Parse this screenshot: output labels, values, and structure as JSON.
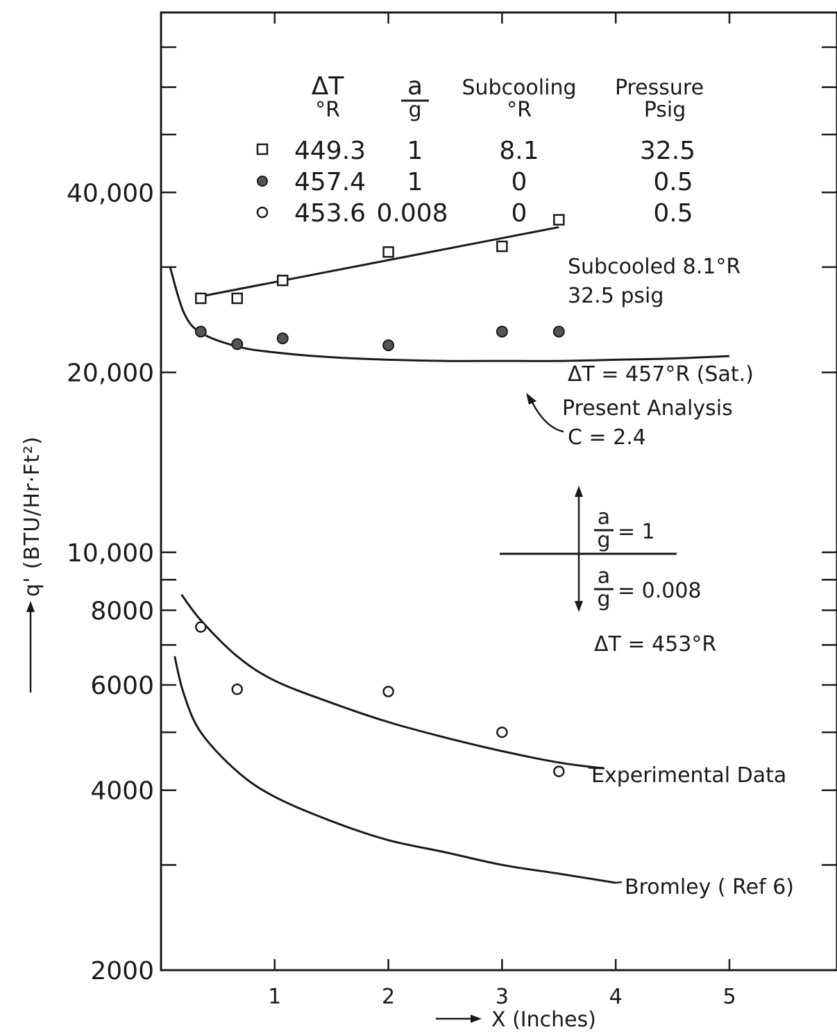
{
  "chart_data": {
    "type": "scatter",
    "title": "",
    "xlabel": "X (Inches)",
    "ylabel": "q' (BTU/Hr·Ft²)",
    "x_scale": "linear",
    "y_scale": "log",
    "xlim": [
      0,
      6
    ],
    "ylim": [
      2000,
      80000
    ],
    "x_ticks": [
      1,
      2,
      3,
      4,
      5
    ],
    "x_tick_labels": [
      "1",
      "2",
      "3",
      "4",
      "5"
    ],
    "y_labeled_ticks": [
      2000,
      4000,
      6000,
      8000,
      10000,
      20000,
      40000
    ],
    "y_tick_labels": [
      "2000",
      "4000",
      "6000",
      "8000",
      "10,000",
      "20,000",
      "40,000"
    ],
    "y_minor_ticks": [
      3000,
      5000,
      7000,
      9000,
      30000,
      50000,
      60000,
      70000
    ],
    "grid": false,
    "legend": {
      "position": "top",
      "headers": [
        {
          "line1": "ΔT",
          "line2": "°R"
        },
        {
          "line1": "a",
          "line2": "g"
        },
        {
          "line1": "Subcooling",
          "line2": "°R"
        },
        {
          "line1": "Pressure",
          "line2": "Psig"
        }
      ],
      "rows": [
        {
          "marker": "open-square",
          "dT": "449.3",
          "ag": "1",
          "subcooling": "8.1",
          "pressure": "32.5"
        },
        {
          "marker": "filled-circle",
          "dT": "457.4",
          "ag": "1",
          "subcooling": "0",
          "pressure": "0.5"
        },
        {
          "marker": "open-circle",
          "dT": "453.6",
          "ag": "0.008",
          "subcooling": "0",
          "pressure": "0.5"
        }
      ]
    },
    "series": [
      {
        "marker": "open-square",
        "x": [
          0.35,
          0.67,
          1.07,
          2.0,
          3.0,
          3.5
        ],
        "y": [
          26600,
          26600,
          28500,
          31800,
          32500,
          36000
        ]
      },
      {
        "marker": "filled-circle",
        "x": [
          0.35,
          0.67,
          1.07,
          2.0,
          3.0,
          3.5
        ],
        "y": [
          23400,
          22300,
          22800,
          22200,
          23400,
          23400
        ]
      },
      {
        "marker": "open-circle",
        "x": [
          0.35,
          0.67,
          2.0,
          3.0,
          3.5
        ],
        "y": [
          7500,
          5900,
          5850,
          5000,
          4300
        ]
      }
    ],
    "curves": [
      {
        "type": "subcooled-fit",
        "x": [
          0.35,
          3.5
        ],
        "y": [
          26800,
          35000
        ]
      },
      {
        "type": "present-analysis",
        "x": [
          0.08,
          0.2,
          0.35,
          0.67,
          1.0,
          1.5,
          2.0,
          2.5,
          3.0,
          3.5,
          4.0,
          4.5,
          5.0
        ],
        "y": [
          30000,
          25200,
          23300,
          22100,
          21600,
          21200,
          21000,
          20900,
          20900,
          20900,
          21000,
          21100,
          21300
        ]
      },
      {
        "type": "experimental-data",
        "x": [
          0.18,
          0.35,
          0.67,
          1.0,
          1.5,
          2.0,
          2.5,
          3.0,
          3.5,
          3.9
        ],
        "y": [
          8500,
          7700,
          6700,
          6100,
          5600,
          5200,
          4900,
          4650,
          4450,
          4350
        ]
      },
      {
        "type": "bromley",
        "x": [
          0.12,
          0.2,
          0.35,
          0.67,
          1.0,
          1.5,
          2.0,
          2.5,
          3.0,
          3.5,
          4.0
        ],
        "y": [
          6700,
          5800,
          5000,
          4300,
          3900,
          3550,
          3300,
          3150,
          3000,
          2900,
          2800
        ]
      }
    ],
    "annotations": {
      "subcooled_line1": "Subcooled 8.1°R",
      "subcooled_line2": "32.5 psig",
      "sat": "ΔT = 457°R (Sat.)",
      "present_line1": "Present Analysis",
      "present_line2": "C = 2.4",
      "ag_num": "a",
      "ag_den": "g",
      "ag1_value": "= 1",
      "ag2_value": "= 0.008",
      "dt453": "ΔT = 453°R",
      "experimental": "Experimental Data",
      "bromley": "Bromley ( Ref 6)"
    }
  }
}
